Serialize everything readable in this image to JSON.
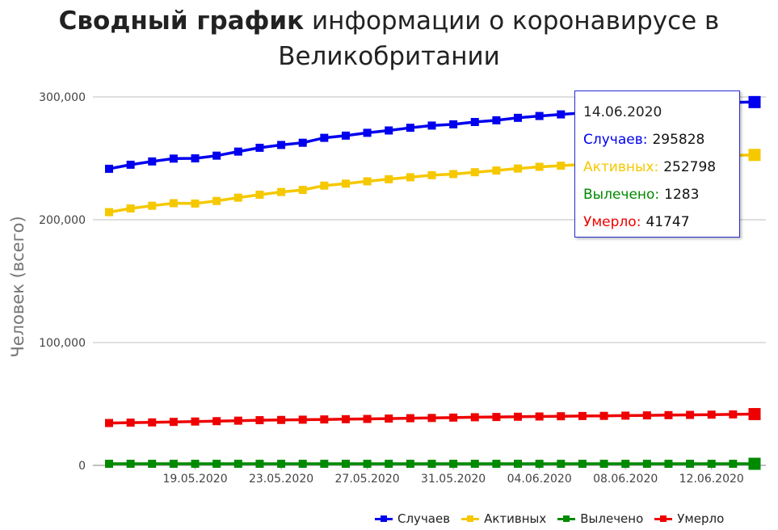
{
  "title": {
    "bold": "Сводный график",
    "rest": "информации о коронавирусе в Великобритании"
  },
  "chart_data": {
    "type": "line",
    "ylabel": "Человек (всего)",
    "ylim": [
      0,
      300000
    ],
    "yticks": [
      "0",
      "100,000",
      "200,000",
      "300,000"
    ],
    "xticks": [
      "19.05.2020",
      "23.05.2020",
      "27.05.2020",
      "31.05.2020",
      "04.06.2020",
      "08.06.2020",
      "12.06.2020"
    ],
    "x": [
      "15.05.2020",
      "16.05.2020",
      "17.05.2020",
      "18.05.2020",
      "19.05.2020",
      "20.05.2020",
      "21.05.2020",
      "22.05.2020",
      "23.05.2020",
      "24.05.2020",
      "25.05.2020",
      "26.05.2020",
      "27.05.2020",
      "28.05.2020",
      "29.05.2020",
      "30.05.2020",
      "31.05.2020",
      "01.06.2020",
      "02.06.2020",
      "03.06.2020",
      "04.06.2020",
      "05.06.2020",
      "06.06.2020",
      "07.06.2020",
      "08.06.2020",
      "09.06.2020",
      "10.06.2020",
      "11.06.2020",
      "12.06.2020",
      "13.06.2020",
      "14.06.2020"
    ],
    "grid": true,
    "legend_position": "bottom-right",
    "series": [
      {
        "name": "Случаев",
        "color": "#0000ee",
        "values": [
          241500,
          244800,
          247500,
          249800,
          250000,
          252200,
          255500,
          258600,
          260900,
          262700,
          266700,
          268500,
          270800,
          272700,
          274900,
          276700,
          277700,
          279600,
          281000,
          283000,
          284500,
          285800,
          287000,
          288700,
          289800,
          291100,
          292600,
          293500,
          295000,
          295600,
          295828
        ]
      },
      {
        "name": "Активных",
        "color": "#f5c800",
        "values": [
          206200,
          209200,
          211400,
          213500,
          213200,
          215300,
          218000,
          220400,
          222600,
          224300,
          227800,
          229400,
          231300,
          233000,
          234600,
          236300,
          237200,
          238700,
          240100,
          241700,
          243100,
          244000,
          245100,
          246500,
          247600,
          248700,
          249900,
          250900,
          252000,
          252400,
          252798
        ]
      },
      {
        "name": "Вылечено",
        "color": "#008a00",
        "values": [
          1283,
          1283,
          1283,
          1283,
          1283,
          1283,
          1283,
          1283,
          1283,
          1283,
          1283,
          1283,
          1283,
          1283,
          1283,
          1283,
          1283,
          1283,
          1283,
          1283,
          1283,
          1283,
          1283,
          1283,
          1283,
          1283,
          1283,
          1283,
          1283,
          1283,
          1283
        ]
      },
      {
        "name": "Умерло",
        "color": "#ee0000",
        "values": [
          34500,
          34800,
          35000,
          35400,
          35700,
          36000,
          36400,
          36800,
          37000,
          37200,
          37400,
          37600,
          37800,
          38100,
          38400,
          38600,
          38900,
          39200,
          39400,
          39600,
          39800,
          40000,
          40200,
          40300,
          40500,
          40700,
          40900,
          41100,
          41300,
          41500,
          41747
        ]
      }
    ]
  },
  "tooltip": {
    "date": "14.06.2020",
    "rows": [
      {
        "label": "Случаев:",
        "value": "295828",
        "color": "#0000ee"
      },
      {
        "label": "Активных:",
        "value": "252798",
        "color": "#f5c800"
      },
      {
        "label": "Вылечено:",
        "value": "1283",
        "color": "#008a00"
      },
      {
        "label": "Умерло:",
        "value": "41747",
        "color": "#ee0000"
      }
    ]
  }
}
